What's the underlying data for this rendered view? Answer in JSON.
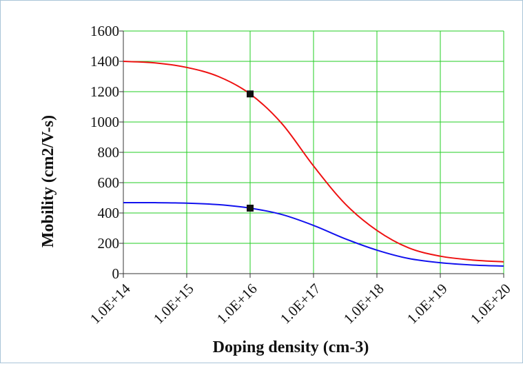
{
  "chart_data": {
    "type": "line",
    "xlabel": "Doping density (cm-3)",
    "ylabel": "Mobility (cm2/V-s)",
    "x_scale": "log",
    "xlim": [
      100000000000000.0,
      1e+20
    ],
    "ylim": [
      0,
      1600
    ],
    "x_tick_labels": [
      "1.0E+14",
      "1.0E+15",
      "1.0E+16",
      "1.0E+17",
      "1.0E+18",
      "1.0E+19",
      "1.0E+20"
    ],
    "x_tick_values": [
      100000000000000.0,
      1000000000000000.0,
      1e+16,
      1e+17,
      1e+18,
      1e+19,
      1e+20
    ],
    "y_ticks": [
      0,
      200,
      400,
      600,
      800,
      1000,
      1200,
      1400,
      1600
    ],
    "grid": true,
    "colors": {
      "grid": "#22cc22",
      "series_1": "#ee1111",
      "series_2": "#1111ee",
      "marker": "#111111"
    },
    "series": [
      {
        "color": "#ee1111",
        "x": [
          100000000000000.0,
          316000000000000.0,
          1000000000000000.0,
          3160000000000000.0,
          1e+16,
          3.16e+16,
          1e+17,
          3.16e+17,
          1e+18,
          3.16e+18,
          1e+19,
          3.16e+19,
          1e+20
        ],
        "values": [
          1400,
          1390,
          1360,
          1300,
          1185,
          990,
          710,
          460,
          285,
          170,
          115,
          90,
          78
        ]
      },
      {
        "color": "#1111ee",
        "x": [
          100000000000000.0,
          316000000000000.0,
          1000000000000000.0,
          3160000000000000.0,
          1e+16,
          3.16e+16,
          1e+17,
          3.16e+17,
          1e+18,
          3.16e+18,
          1e+19,
          3.16e+19,
          1e+20
        ],
        "values": [
          468,
          468,
          465,
          455,
          432,
          390,
          318,
          230,
          155,
          100,
          72,
          57,
          50
        ]
      }
    ],
    "markers": [
      {
        "x": 1e+16,
        "y": 1185
      },
      {
        "x": 1e+16,
        "y": 432
      }
    ]
  }
}
